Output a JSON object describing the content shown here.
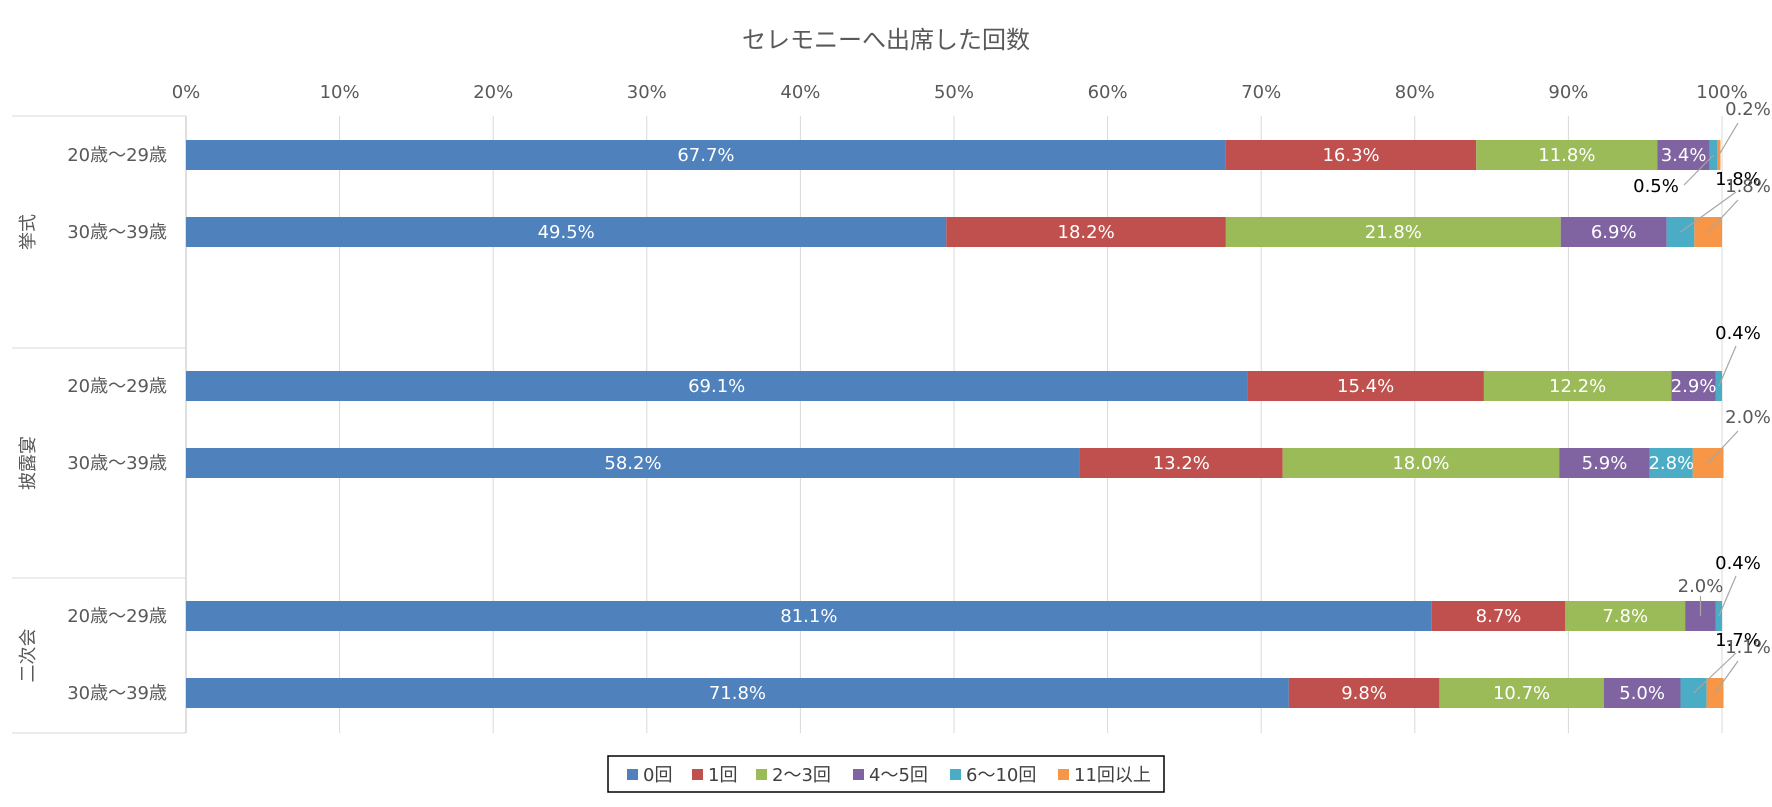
{
  "chart_data": {
    "type": "bar",
    "orientation": "horizontal",
    "stacked": "percent",
    "title": "セレモニーへ出席した回数",
    "xlim": [
      0,
      100
    ],
    "x_ticks": [
      "0%",
      "10%",
      "20%",
      "30%",
      "40%",
      "50%",
      "60%",
      "70%",
      "80%",
      "90%",
      "100%"
    ],
    "grid": true,
    "legend_position": "bottom",
    "groups": [
      {
        "name": "挙式",
        "categories": [
          "20歳～29歳",
          "30歳～39歳"
        ]
      },
      {
        "name": "披露宴",
        "categories": [
          "20歳～29歳",
          "30歳～39歳"
        ]
      },
      {
        "name": "二次会",
        "categories": [
          "20歳～29歳",
          "30歳～39歳"
        ]
      }
    ],
    "series": [
      {
        "name": "0回",
        "color": "#4f81bd",
        "values": [
          67.7,
          49.5,
          69.1,
          58.2,
          81.1,
          71.8
        ],
        "labels": [
          "67.7%",
          "49.5%",
          "69.1%",
          "58.2%",
          "81.1%",
          "71.8%"
        ]
      },
      {
        "name": "1回",
        "color": "#c0504d",
        "values": [
          16.3,
          18.2,
          15.4,
          13.2,
          8.7,
          9.8
        ],
        "labels": [
          "16.3%",
          "18.2%",
          "15.4%",
          "13.2%",
          "8.7%",
          "9.8%"
        ]
      },
      {
        "name": "2～3回",
        "color": "#9bbb59",
        "values": [
          11.8,
          21.8,
          12.2,
          18.0,
          7.8,
          10.7
        ],
        "labels": [
          "11.8%",
          "21.8%",
          "12.2%",
          "18.0%",
          "7.8%",
          "10.7%"
        ]
      },
      {
        "name": "4～5回",
        "color": "#8064a2",
        "values": [
          3.4,
          6.9,
          2.9,
          5.9,
          2.0,
          5.0
        ],
        "labels": [
          "3.4%",
          "6.9%",
          "2.9%",
          "5.9%",
          "2.0%",
          "5.0%"
        ]
      },
      {
        "name": "6～10回",
        "color": "#4bacc6",
        "values": [
          0.5,
          1.8,
          0.4,
          2.8,
          0.4,
          1.7
        ],
        "labels": [
          "0.5%",
          "1.8%",
          "0.4%",
          "2.8%",
          "0.4%",
          "1.7%"
        ]
      },
      {
        "name": "11回以上",
        "color": "#f79646",
        "values": [
          0.2,
          1.8,
          0.0,
          2.0,
          0.0,
          1.1
        ],
        "labels": [
          "0.2%",
          "1.8%",
          "",
          "2.0%",
          "",
          "1.1%"
        ]
      }
    ]
  }
}
